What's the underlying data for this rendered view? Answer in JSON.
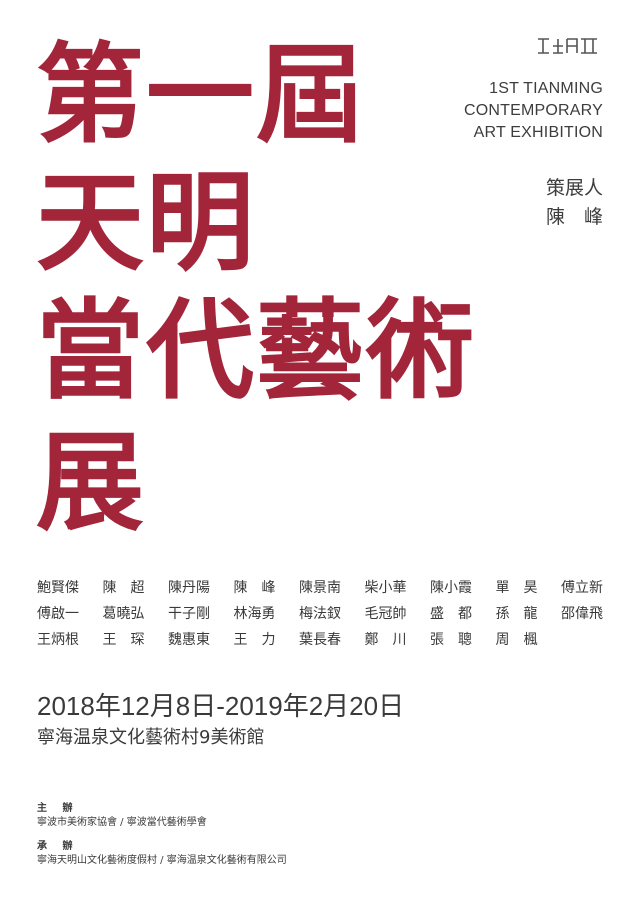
{
  "title_lines": [
    "第一屆",
    "天明",
    "當代藝術",
    "展"
  ],
  "english_title": [
    "1ST TIANMING",
    "CONTEMPORARY",
    "ART EXHIBITION"
  ],
  "logo_icon": "tianming-logo-icon",
  "curator": {
    "label": "策展人",
    "name": "陳　峰"
  },
  "artists": [
    "鮑賢傑",
    "陳　超",
    "陳丹陽",
    "陳　峰",
    "陳景南",
    "柴小華",
    "陳小霞",
    "單　昊",
    "傅立新",
    "傅啟一",
    "葛曉弘",
    "干子剛",
    "林海勇",
    "梅法釵",
    "毛冠帥",
    "盛　都",
    "孫　龍",
    "邵偉飛",
    "王炳根",
    "王　琛",
    "魏惠東",
    "王　力",
    "葉長春",
    "鄭　川",
    "張　聰",
    "周　楓"
  ],
  "dates": "2018年12月8日-2019年2月20日",
  "venue": "寧海温泉文化藝術村9美術館",
  "organizer": {
    "label": "主 辦",
    "value": "寧波市美術家協會 / 寧波當代藝術學會"
  },
  "coorganizer": {
    "label": "承 辦",
    "value": "寧海天明山文化藝術度假村 / 寧海温泉文化藝術有限公司"
  },
  "colors": {
    "title": "#a3253a",
    "text": "#3a3a3a",
    "background": "#ffffff"
  }
}
